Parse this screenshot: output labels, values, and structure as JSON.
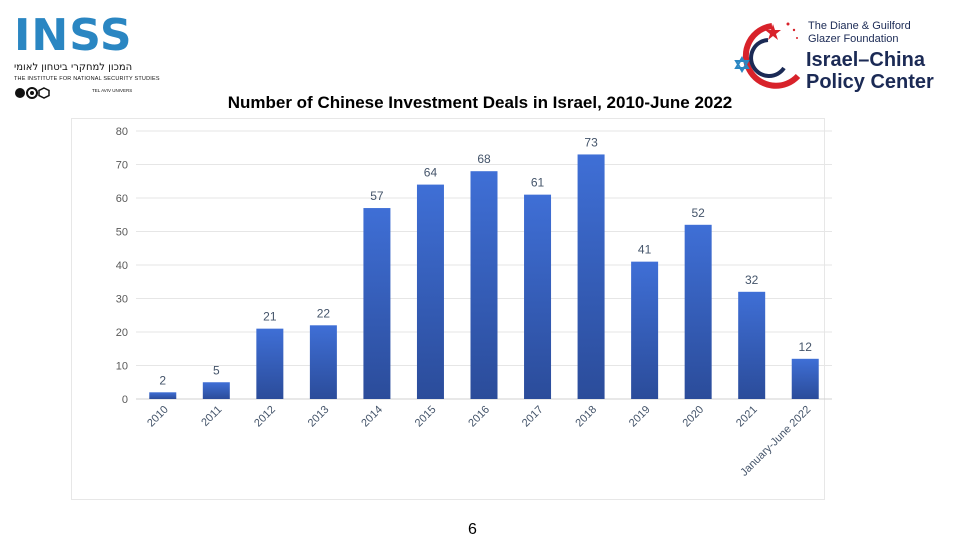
{
  "logos": {
    "inss": {
      "name": "INSS",
      "hebrew": "המכון למחקרי ביטחון לאומי",
      "english": "THE INSTITUTE FOR NATIONAL SECURITY STUDIES",
      "tel_aviv": "TEL AVIV UNIVERS"
    },
    "glazer": {
      "line1": "The Diane & Guilford",
      "line2": "Glazer Foundation",
      "line3": "Israel–China",
      "line4": "Policy Center"
    }
  },
  "chart_data": {
    "type": "bar",
    "title": "Number of Chinese Investment Deals in Israel, 2010-June 2022",
    "xlabel": "",
    "ylabel": "",
    "categories": [
      "2010",
      "2011",
      "2012",
      "2013",
      "2014",
      "2015",
      "2016",
      "2017",
      "2018",
      "2019",
      "2020",
      "2021",
      "January-June 2022"
    ],
    "values": [
      2,
      5,
      21,
      22,
      57,
      64,
      68,
      61,
      73,
      41,
      52,
      32,
      12
    ],
    "ylim": [
      0,
      80
    ],
    "yticks": [
      0,
      10,
      20,
      30,
      40,
      50,
      60,
      70,
      80
    ],
    "grid": true,
    "legend": "none",
    "bar_color_top": "#3f6fd6",
    "bar_color_bottom": "#2b4c9a"
  },
  "page_number": "6"
}
